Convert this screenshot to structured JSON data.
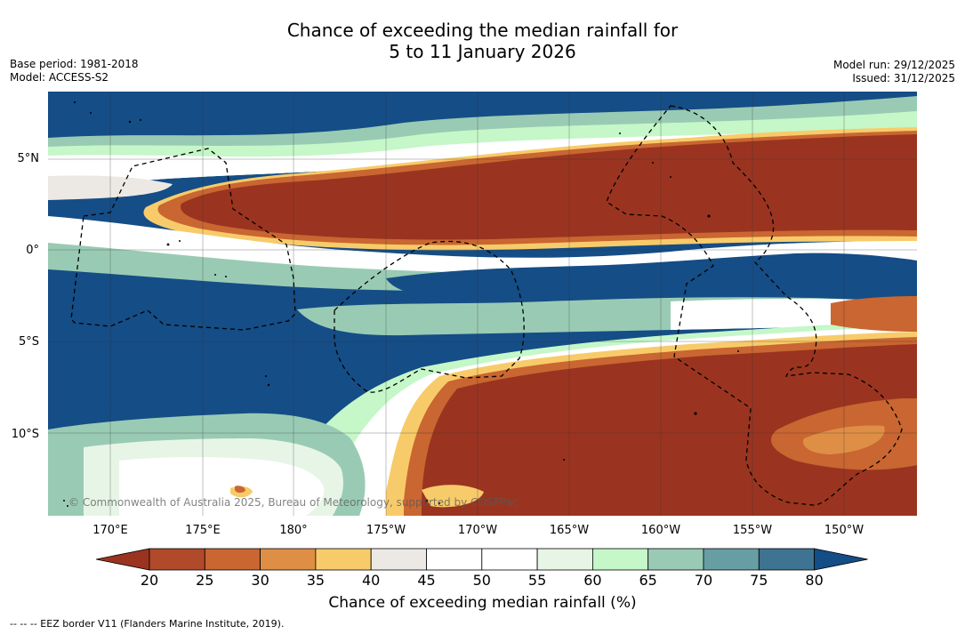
{
  "title_line1": "Chance of exceeding the median rainfall for",
  "title_line2": "5 to 11 January 2026",
  "meta": {
    "base_period": "Base period: 1981-2018",
    "model": "Model: ACCESS-S2",
    "model_run": "Model run: 29/12/2025",
    "issued": "Issued: 31/12/2025"
  },
  "map": {
    "lat_labels": [
      "5°N",
      "0°",
      "5°S",
      "10°S"
    ],
    "lon_labels": [
      "170°E",
      "175°E",
      "180°",
      "175°W",
      "170°W",
      "165°W",
      "160°W",
      "155°W",
      "150°W"
    ],
    "copyright": "© Commonwealth of Australia 2025, Bureau of Meteorology, supported by COSPPac"
  },
  "colorbar": {
    "ticks": [
      "20",
      "25",
      "30",
      "35",
      "40",
      "45",
      "50",
      "55",
      "60",
      "65",
      "70",
      "75",
      "80"
    ],
    "label": "Chance of exceeding median rainfall (%)",
    "colors": [
      "#9a3420",
      "#b04a2a",
      "#c96631",
      "#de8f45",
      "#f8cb6a",
      "#ece9e4",
      "#ffffff",
      "#ffffff",
      "#e7f5e7",
      "#c5f7c8",
      "#99cbb4",
      "#679ea4",
      "#3e7392",
      "#154d86"
    ]
  },
  "footnote": "-- -- -- EEZ border V11 (Flanders Marine Institute, 2019).",
  "chart_data": {
    "type": "heatmap",
    "title": "Chance of exceeding the median rainfall for 5 to 11 January 2026",
    "colorbar_label": "Chance of exceeding median rainfall (%)",
    "color_levels": [
      20,
      25,
      30,
      35,
      40,
      45,
      50,
      55,
      60,
      65,
      70,
      75,
      80
    ],
    "lat_range": [
      -14.5,
      8.5
    ],
    "lon_range": [
      167,
      214
    ],
    "regions": [
      {
        "name": "north-wet",
        "lat": [
          6.5,
          8.5
        ],
        "lon": [
          167,
          214
        ],
        "value": 85
      },
      {
        "name": "north-dry",
        "lat": [
          0.5,
          5
        ],
        "lon": [
          173,
          214
        ],
        "value": 15
      },
      {
        "name": "equatorial-wet",
        "lat": [
          -5,
          0
        ],
        "lon": [
          167,
          214
        ],
        "value": 82
      },
      {
        "name": "south-dry",
        "lat": [
          -14.5,
          -6
        ],
        "lon": [
          187,
          214
        ],
        "value": 15
      },
      {
        "name": "southwest-wet",
        "lat": [
          -10,
          -5
        ],
        "lon": [
          167,
          183
        ],
        "value": 85
      }
    ]
  }
}
